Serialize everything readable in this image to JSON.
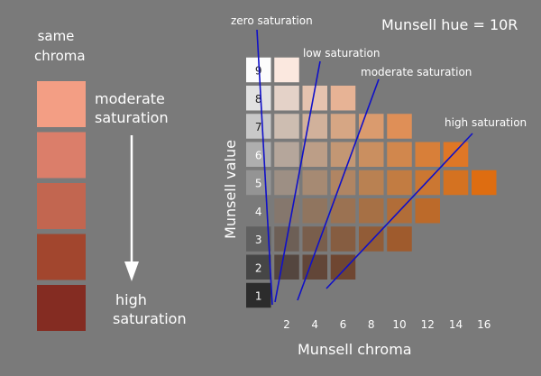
{
  "left_panel": {
    "title_line1": "same",
    "title_line2": "chroma",
    "top_label_line1": "moderate",
    "top_label_line2": "saturation",
    "bottom_label_line1": "high",
    "bottom_label_line2": "saturation",
    "swatch_colors": [
      "#f39e84",
      "#db7e6a",
      "#c26650",
      "#a2462e",
      "#842c22"
    ]
  },
  "chart": {
    "title": "Munsell hue = 10R",
    "xlabel": "Munsell chroma",
    "ylabel": "Munsell value",
    "chroma_ticks": [
      "2",
      "4",
      "6",
      "8",
      "10",
      "12",
      "14",
      "16"
    ],
    "value_labels": [
      "1",
      "2",
      "3",
      "4",
      "5",
      "6",
      "7",
      "8",
      "9"
    ],
    "saturation_labels": [
      "zero saturation",
      "low saturation",
      "moderate saturation",
      "high saturation"
    ],
    "line_color": "#1010c8"
  },
  "chart_data": {
    "type": "table",
    "rows": [
      {
        "value": 9,
        "max_chroma": 2
      },
      {
        "value": 8,
        "max_chroma": 6
      },
      {
        "value": 7,
        "max_chroma": 10
      },
      {
        "value": 6,
        "max_chroma": 14
      },
      {
        "value": 5,
        "max_chroma": 16
      },
      {
        "value": 4,
        "max_chroma": 12
      },
      {
        "value": 3,
        "max_chroma": 10
      },
      {
        "value": 2,
        "max_chroma": 6
      },
      {
        "value": 1,
        "max_chroma": 0
      }
    ]
  }
}
